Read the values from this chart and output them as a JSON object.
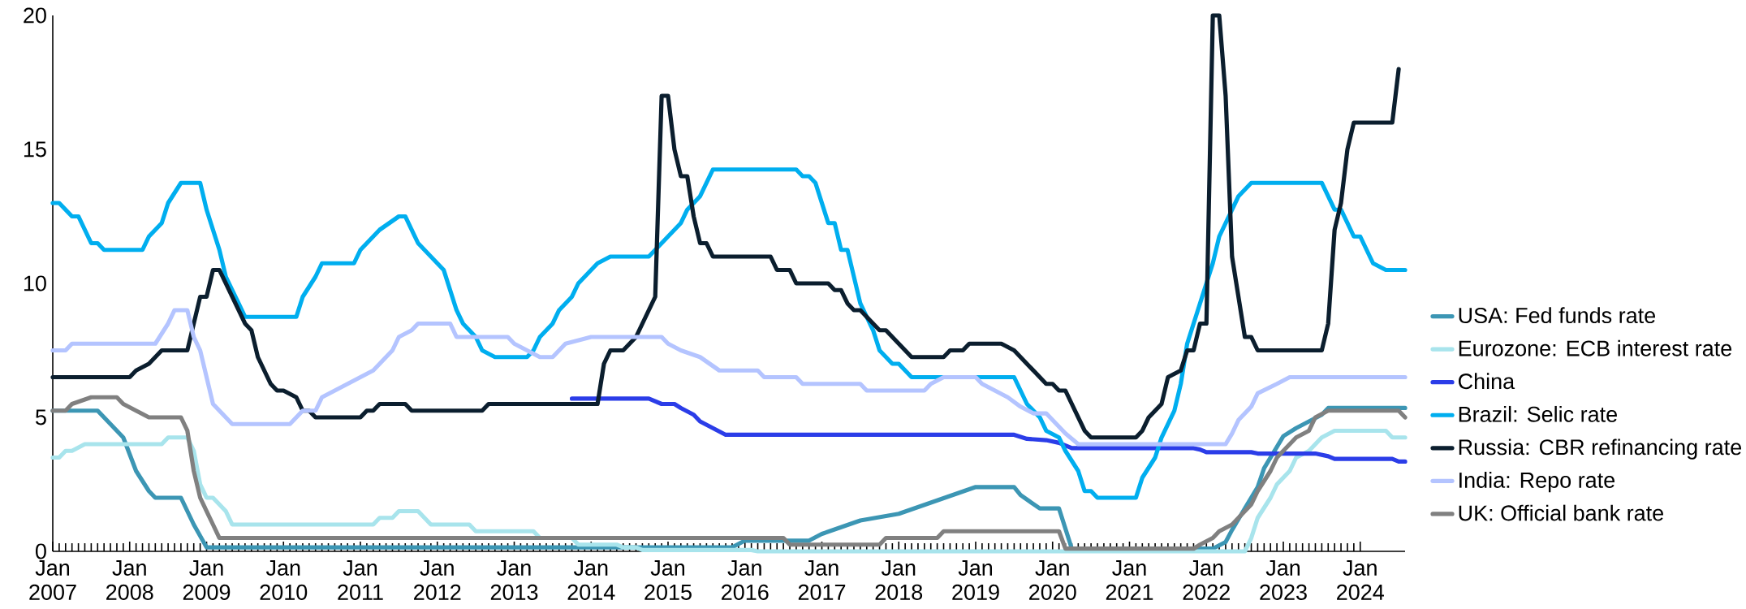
{
  "chart_data": {
    "type": "line",
    "xlim": [
      "2007-01",
      "2024-08"
    ],
    "ylim": [
      0,
      20
    ],
    "yticks": [
      0,
      5,
      10,
      15,
      20
    ],
    "legend": "right",
    "line_style": "solid",
    "xticks": [
      {
        "value": "2007-01",
        "label": "Jan 2007"
      },
      {
        "value": "2008-01",
        "label": "Jan 2008"
      },
      {
        "value": "2009-01",
        "label": "Jan 2009"
      },
      {
        "value": "2010-01",
        "label": "Jan 2010"
      },
      {
        "value": "2011-01",
        "label": "Jan 2011"
      },
      {
        "value": "2012-01",
        "label": "Jan 2012"
      },
      {
        "value": "2013-01",
        "label": "Jan 2013"
      },
      {
        "value": "2014-01",
        "label": "Jan 2014"
      },
      {
        "value": "2015-01",
        "label": "Jan 2015"
      },
      {
        "value": "2016-01",
        "label": "Jan 2016"
      },
      {
        "value": "2017-01",
        "label": "Jan 2017"
      },
      {
        "value": "2018-01",
        "label": "Jan 2018"
      },
      {
        "value": "2019-01",
        "label": "Jan 2019"
      },
      {
        "value": "2020-01",
        "label": "Jan 2020"
      },
      {
        "value": "2021-01",
        "label": "Jan 2021"
      },
      {
        "value": "2022-01",
        "label": "Jan 2022"
      },
      {
        "value": "2023-01",
        "label": "Jan 2023"
      },
      {
        "value": "2024-01",
        "label": "Jan 2024"
      }
    ],
    "series": [
      {
        "name": "USA: Fed funds rate",
        "color": "#3c96b4",
        "x": [
          "2007-01",
          "2007-08",
          "2007-10",
          "2007-11",
          "2007-12",
          "2008-02",
          "2008-04",
          "2008-05",
          "2008-09",
          "2008-11",
          "2009-01",
          "2015-11",
          "2016-01",
          "2016-11",
          "2017-01",
          "2017-04",
          "2017-07",
          "2018-01",
          "2018-04",
          "2018-07",
          "2018-10",
          "2019-01",
          "2019-07",
          "2019-08",
          "2019-11",
          "2020-02",
          "2020-04",
          "2022-02",
          "2022-04",
          "2022-05",
          "2022-07",
          "2022-09",
          "2022-10",
          "2022-12",
          "2023-01",
          "2023-03",
          "2023-05",
          "2023-07",
          "2023-08",
          "2024-08"
        ],
        "values": [
          5.25,
          5.25,
          4.75,
          4.5,
          4.25,
          3.0,
          2.25,
          2.0,
          2.0,
          1.0,
          0.15,
          0.15,
          0.4,
          0.4,
          0.65,
          0.9,
          1.15,
          1.4,
          1.65,
          1.9,
          2.15,
          2.4,
          2.4,
          2.1,
          1.6,
          1.6,
          0.1,
          0.1,
          0.35,
          0.8,
          1.6,
          2.4,
          3.1,
          3.9,
          4.3,
          4.6,
          4.85,
          5.1,
          5.35,
          5.35
        ]
      },
      {
        "name": "Eurozone: ECB interest rate",
        "color": "#a8e4ec",
        "x": [
          "2007-01",
          "2007-02",
          "2007-03",
          "2007-04",
          "2007-06",
          "2008-06",
          "2008-07",
          "2008-10",
          "2008-11",
          "2008-12",
          "2009-01",
          "2009-02",
          "2009-04",
          "2009-05",
          "2011-03",
          "2011-04",
          "2011-06",
          "2011-07",
          "2011-10",
          "2011-12",
          "2012-06",
          "2012-07",
          "2013-04",
          "2013-05",
          "2013-10",
          "2013-11",
          "2014-05",
          "2014-06",
          "2014-08",
          "2014-09",
          "2016-02",
          "2016-03",
          "2022-07",
          "2022-08",
          "2022-09",
          "2022-11",
          "2022-12",
          "2023-02",
          "2023-03",
          "2023-05",
          "2023-07",
          "2023-09",
          "2024-05",
          "2024-06",
          "2024-08"
        ],
        "values": [
          3.5,
          3.5,
          3.75,
          3.75,
          4.0,
          4.0,
          4.25,
          4.25,
          3.75,
          2.5,
          2.0,
          2.0,
          1.5,
          1.0,
          1.0,
          1.25,
          1.25,
          1.5,
          1.5,
          1.0,
          1.0,
          0.75,
          0.75,
          0.5,
          0.5,
          0.25,
          0.25,
          0.15,
          0.15,
          0.05,
          0.05,
          0.0,
          0.0,
          0.5,
          1.25,
          2.0,
          2.5,
          3.0,
          3.5,
          3.75,
          4.25,
          4.5,
          4.5,
          4.25,
          4.25
        ]
      },
      {
        "name": "China",
        "color": "#2b3de8",
        "x": [
          "2013-10",
          "2014-10",
          "2014-12",
          "2015-02",
          "2015-03",
          "2015-05",
          "2015-06",
          "2015-08",
          "2015-10",
          "2019-07",
          "2019-09",
          "2019-12",
          "2020-02",
          "2020-04",
          "2021-11",
          "2021-12",
          "2022-01",
          "2022-08",
          "2022-09",
          "2023-06",
          "2023-08",
          "2023-09",
          "2024-06",
          "2024-07",
          "2024-08"
        ],
        "values": [
          5.7,
          5.7,
          5.5,
          5.5,
          5.35,
          5.1,
          4.85,
          4.6,
          4.35,
          4.35,
          4.2,
          4.15,
          4.05,
          3.85,
          3.85,
          3.8,
          3.7,
          3.7,
          3.65,
          3.65,
          3.55,
          3.45,
          3.45,
          3.35,
          3.35
        ]
      },
      {
        "name": "Brazil: Selic rate",
        "color": "#00aeef",
        "x": [
          "2007-01",
          "2007-02",
          "2007-04",
          "2007-05",
          "2007-07",
          "2007-08",
          "2007-09",
          "2008-03",
          "2008-04",
          "2008-06",
          "2008-07",
          "2008-09",
          "2008-12",
          "2009-01",
          "2009-03",
          "2009-04",
          "2009-06",
          "2009-07",
          "2010-03",
          "2010-04",
          "2010-06",
          "2010-07",
          "2010-12",
          "2011-01",
          "2011-03",
          "2011-04",
          "2011-07",
          "2011-08",
          "2011-10",
          "2011-12",
          "2012-02",
          "2012-03",
          "2012-04",
          "2012-05",
          "2012-07",
          "2012-08",
          "2012-10",
          "2013-03",
          "2013-04",
          "2013-05",
          "2013-07",
          "2013-08",
          "2013-10",
          "2013-11",
          "2014-01",
          "2014-02",
          "2014-04",
          "2014-10",
          "2014-11",
          "2015-01",
          "2015-03",
          "2015-04",
          "2015-06",
          "2015-07",
          "2015-08",
          "2016-09",
          "2016-10",
          "2016-11",
          "2016-12",
          "2017-01",
          "2017-02",
          "2017-03",
          "2017-04",
          "2017-05",
          "2017-07",
          "2017-09",
          "2017-10",
          "2017-12",
          "2018-01",
          "2018-02",
          "2018-03",
          "2019-07",
          "2019-08",
          "2019-09",
          "2019-11",
          "2019-12",
          "2020-02",
          "2020-03",
          "2020-05",
          "2020-06",
          "2020-07",
          "2020-08",
          "2021-02",
          "2021-03",
          "2021-05",
          "2021-06",
          "2021-08",
          "2021-09",
          "2021-10",
          "2021-12",
          "2022-02",
          "2022-03",
          "2022-06",
          "2022-08",
          "2023-07",
          "2023-08",
          "2023-09",
          "2023-10",
          "2023-11",
          "2023-12",
          "2024-01",
          "2024-02",
          "2024-03",
          "2024-05",
          "2024-08"
        ],
        "values": [
          13.0,
          13.0,
          12.5,
          12.5,
          11.5,
          11.5,
          11.25,
          11.25,
          11.75,
          12.25,
          13.0,
          13.75,
          13.75,
          12.75,
          11.25,
          10.25,
          9.25,
          8.75,
          8.75,
          9.5,
          10.25,
          10.75,
          10.75,
          11.25,
          11.75,
          12.0,
          12.5,
          12.5,
          11.5,
          11.0,
          10.5,
          9.75,
          9.0,
          8.5,
          8.0,
          7.5,
          7.25,
          7.25,
          7.5,
          8.0,
          8.5,
          9.0,
          9.5,
          10.0,
          10.5,
          10.75,
          11.0,
          11.0,
          11.25,
          11.75,
          12.25,
          12.75,
          13.25,
          13.75,
          14.25,
          14.25,
          14.0,
          14.0,
          13.75,
          13.0,
          12.25,
          12.25,
          11.25,
          11.25,
          9.25,
          8.25,
          7.5,
          7.0,
          7.0,
          6.75,
          6.5,
          6.5,
          6.0,
          5.5,
          5.0,
          4.5,
          4.25,
          3.75,
          3.0,
          2.25,
          2.25,
          2.0,
          2.0,
          2.75,
          3.5,
          4.25,
          5.25,
          6.25,
          7.75,
          9.25,
          10.75,
          11.75,
          13.25,
          13.75,
          13.75,
          13.25,
          12.75,
          12.75,
          12.25,
          11.75,
          11.75,
          11.25,
          10.75,
          10.5,
          10.5
        ]
      },
      {
        "name": "Russia: CBR refinancing rate",
        "color": "#0b1e2e",
        "x": [
          "2007-01",
          "2008-01",
          "2008-02",
          "2008-04",
          "2008-05",
          "2008-06",
          "2008-10",
          "2008-11",
          "2008-12",
          "2009-01",
          "2009-02",
          "2009-03",
          "2009-05",
          "2009-07",
          "2009-08",
          "2009-09",
          "2009-11",
          "2009-12",
          "2010-01",
          "2010-03",
          "2010-04",
          "2010-05",
          "2010-06",
          "2011-01",
          "2011-02",
          "2011-03",
          "2011-04",
          "2011-08",
          "2011-09",
          "2012-08",
          "2012-09",
          "2014-02",
          "2014-03",
          "2014-04",
          "2014-06",
          "2014-08",
          "2014-11",
          "2014-12",
          "2015-01",
          "2015-02",
          "2015-03",
          "2015-04",
          "2015-05",
          "2015-06",
          "2015-07",
          "2015-08",
          "2016-05",
          "2016-06",
          "2016-08",
          "2016-09",
          "2017-02",
          "2017-03",
          "2017-04",
          "2017-05",
          "2017-06",
          "2017-07",
          "2017-09",
          "2017-10",
          "2017-11",
          "2018-01",
          "2018-02",
          "2018-03",
          "2018-08",
          "2018-09",
          "2018-11",
          "2018-12",
          "2019-05",
          "2019-07",
          "2019-08",
          "2019-09",
          "2019-11",
          "2019-12",
          "2020-01",
          "2020-02",
          "2020-03",
          "2020-04",
          "2020-06",
          "2020-07",
          "2021-02",
          "2021-03",
          "2021-04",
          "2021-06",
          "2021-07",
          "2021-09",
          "2021-10",
          "2021-11",
          "2021-12",
          "2022-01",
          "2022-02",
          "2022-03",
          "2022-04",
          "2022-05",
          "2022-07",
          "2022-08",
          "2022-09",
          "2023-07",
          "2023-08",
          "2023-09",
          "2023-10",
          "2023-11",
          "2023-12",
          "2024-06",
          "2024-07"
        ],
        "values": [
          6.5,
          6.5,
          6.75,
          7.0,
          7.25,
          7.5,
          7.5,
          8.5,
          9.5,
          9.5,
          10.5,
          10.5,
          9.5,
          8.5,
          8.25,
          7.25,
          6.25,
          6.0,
          6.0,
          5.75,
          5.25,
          5.25,
          5.0,
          5.0,
          5.25,
          5.25,
          5.5,
          5.5,
          5.25,
          5.25,
          5.5,
          5.5,
          7.0,
          7.5,
          7.5,
          8.0,
          9.5,
          17.0,
          17.0,
          15.0,
          14.0,
          14.0,
          12.5,
          11.5,
          11.5,
          11.0,
          11.0,
          10.5,
          10.5,
          10.0,
          10.0,
          9.75,
          9.75,
          9.25,
          9.0,
          9.0,
          8.5,
          8.25,
          8.25,
          7.75,
          7.5,
          7.25,
          7.25,
          7.5,
          7.5,
          7.75,
          7.75,
          7.5,
          7.25,
          7.0,
          6.5,
          6.25,
          6.25,
          6.0,
          6.0,
          5.5,
          4.5,
          4.25,
          4.25,
          4.5,
          5.0,
          5.5,
          6.5,
          6.75,
          7.5,
          7.5,
          8.5,
          8.5,
          20.0,
          20.0,
          17.0,
          11.0,
          8.0,
          8.0,
          7.5,
          7.5,
          8.5,
          12.0,
          13.0,
          15.0,
          16.0,
          16.0,
          18.0
        ]
      },
      {
        "name": "India: Repo rate",
        "color": "#b4c4ff",
        "x": [
          "2007-01",
          "2007-03",
          "2007-04",
          "2008-05",
          "2008-07",
          "2008-08",
          "2008-10",
          "2008-11",
          "2008-12",
          "2009-01",
          "2009-02",
          "2009-04",
          "2009-05",
          "2010-02",
          "2010-03",
          "2010-04",
          "2010-06",
          "2010-07",
          "2010-09",
          "2010-11",
          "2011-01",
          "2011-03",
          "2011-05",
          "2011-06",
          "2011-07",
          "2011-09",
          "2011-10",
          "2012-03",
          "2012-04",
          "2012-12",
          "2013-01",
          "2013-03",
          "2013-05",
          "2013-07",
          "2013-08",
          "2013-09",
          "2014-01",
          "2014-12",
          "2015-01",
          "2015-03",
          "2015-06",
          "2015-09",
          "2016-03",
          "2016-04",
          "2016-09",
          "2016-10",
          "2017-07",
          "2017-08",
          "2018-05",
          "2018-06",
          "2018-08",
          "2019-01",
          "2019-02",
          "2019-04",
          "2019-06",
          "2019-08",
          "2019-10",
          "2019-12",
          "2020-03",
          "2020-05",
          "2022-04",
          "2022-05",
          "2022-06",
          "2022-08",
          "2022-09",
          "2022-12",
          "2023-02",
          "2024-08"
        ],
        "values": [
          7.5,
          7.5,
          7.75,
          7.75,
          8.5,
          9.0,
          9.0,
          8.0,
          7.5,
          6.5,
          5.5,
          5.0,
          4.75,
          4.75,
          5.0,
          5.25,
          5.25,
          5.75,
          6.0,
          6.25,
          6.5,
          6.75,
          7.25,
          7.5,
          8.0,
          8.25,
          8.5,
          8.5,
          8.0,
          8.0,
          7.75,
          7.5,
          7.25,
          7.25,
          7.5,
          7.75,
          8.0,
          8.0,
          7.75,
          7.5,
          7.25,
          6.75,
          6.75,
          6.5,
          6.5,
          6.25,
          6.25,
          6.0,
          6.0,
          6.25,
          6.5,
          6.5,
          6.25,
          6.0,
          5.75,
          5.4,
          5.15,
          5.15,
          4.4,
          4.0,
          4.0,
          4.4,
          4.9,
          5.4,
          5.9,
          6.25,
          6.5,
          6.5
        ]
      },
      {
        "name": "UK: Official bank rate",
        "color": "#808080",
        "x": [
          "2007-01",
          "2007-03",
          "2007-04",
          "2007-07",
          "2007-11",
          "2007-12",
          "2008-02",
          "2008-04",
          "2008-09",
          "2008-10",
          "2008-11",
          "2008-12",
          "2009-01",
          "2009-02",
          "2009-03",
          "2016-07",
          "2016-08",
          "2017-10",
          "2017-11",
          "2018-07",
          "2018-08",
          "2020-02",
          "2020-03",
          "2021-11",
          "2021-12",
          "2022-02",
          "2022-03",
          "2022-05",
          "2022-06",
          "2022-08",
          "2022-09",
          "2022-11",
          "2022-12",
          "2023-02",
          "2023-03",
          "2023-05",
          "2023-06",
          "2023-08",
          "2024-07",
          "2024-08"
        ],
        "values": [
          5.25,
          5.25,
          5.5,
          5.75,
          5.75,
          5.5,
          5.25,
          5.0,
          5.0,
          4.5,
          3.0,
          2.0,
          1.5,
          1.0,
          0.5,
          0.5,
          0.25,
          0.25,
          0.5,
          0.5,
          0.75,
          0.75,
          0.1,
          0.1,
          0.25,
          0.5,
          0.75,
          1.0,
          1.25,
          1.75,
          2.25,
          3.0,
          3.5,
          4.0,
          4.25,
          4.5,
          5.0,
          5.25,
          5.25,
          5.0
        ]
      }
    ]
  }
}
